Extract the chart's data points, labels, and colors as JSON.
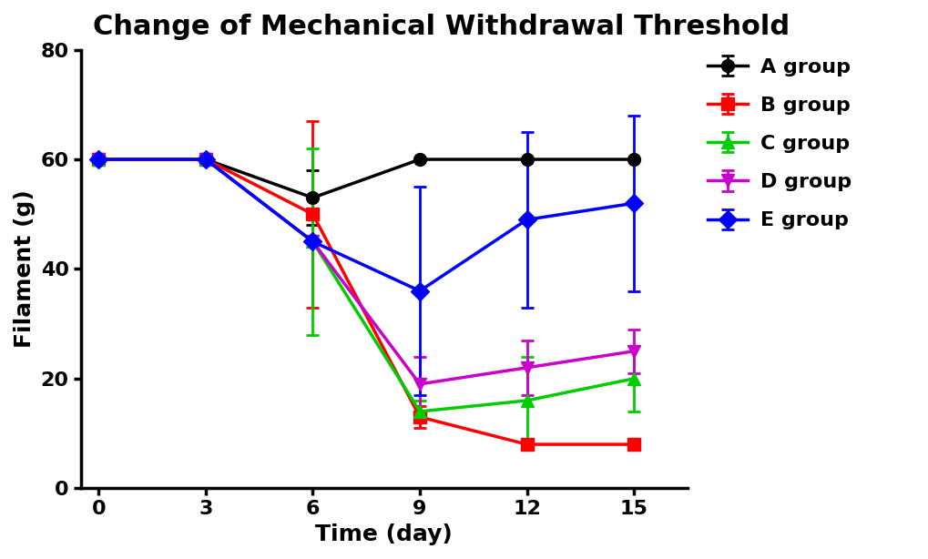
{
  "title": "Change of Mechanical Withdrawal Threshold",
  "xlabel": "Time (day)",
  "ylabel": "Filament (g)",
  "x": [
    0,
    3,
    6,
    9,
    12,
    15
  ],
  "groups": {
    "A group": {
      "color": "#000000",
      "marker": "o",
      "markersize": 10,
      "y": [
        60,
        60,
        53,
        60,
        60,
        60
      ],
      "yerr": [
        0,
        0,
        5,
        0,
        0,
        0
      ]
    },
    "B group": {
      "color": "#FF0000",
      "marker": "s",
      "markersize": 10,
      "y": [
        60,
        60,
        50,
        13,
        8,
        8
      ],
      "yerr": [
        0,
        0,
        17,
        2,
        1,
        1
      ]
    },
    "C group": {
      "color": "#00CC00",
      "marker": "^",
      "markersize": 10,
      "y": [
        60,
        60,
        45,
        14,
        16,
        20
      ],
      "yerr": [
        0,
        0,
        17,
        2,
        8,
        6
      ]
    },
    "D group": {
      "color": "#CC00CC",
      "marker": "v",
      "markersize": 10,
      "y": [
        60,
        60,
        45,
        19,
        22,
        25
      ],
      "yerr": [
        0,
        0,
        0,
        5,
        5,
        4
      ]
    },
    "E group": {
      "color": "#0000FF",
      "marker": "D",
      "markersize": 10,
      "y": [
        60,
        60,
        45,
        36,
        49,
        52
      ],
      "yerr": [
        0,
        0,
        0,
        19,
        16,
        16
      ]
    }
  },
  "ylim": [
    0,
    80
  ],
  "yticks": [
    0,
    20,
    40,
    60,
    80
  ],
  "xticks": [
    0,
    3,
    6,
    9,
    12,
    15
  ],
  "xlim": [
    -0.5,
    16.5
  ],
  "linewidth": 2.5,
  "capsize": 5,
  "elinewidth": 2,
  "capthick": 2,
  "title_fontsize": 22,
  "label_fontsize": 18,
  "tick_fontsize": 16,
  "legend_fontsize": 16
}
